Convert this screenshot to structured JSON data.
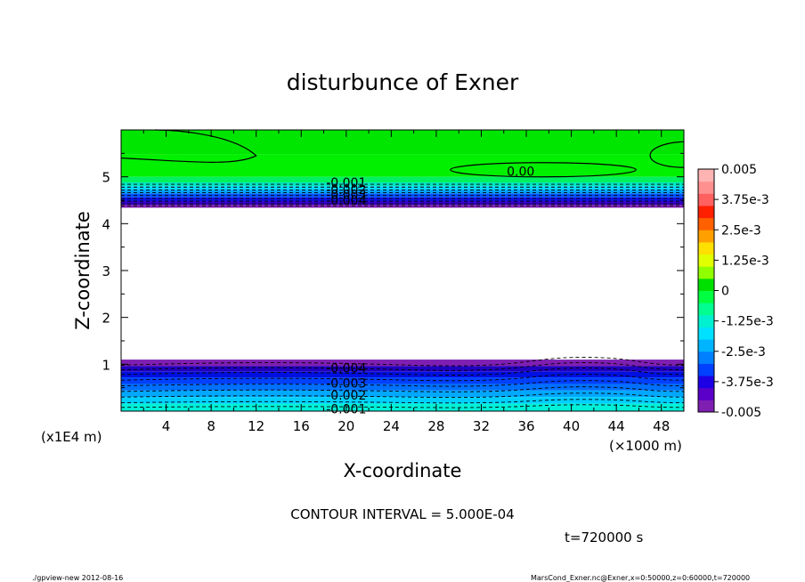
{
  "chart_data": {
    "type": "heatmap",
    "title": "disturbunce of Exner",
    "xlabel": "X-coordinate",
    "ylabel": "Z-coordinate",
    "x_unit": "(×1000 m)",
    "y_unit": "(x1E4 m)",
    "xlim": [
      0,
      50
    ],
    "ylim": [
      0,
      6
    ],
    "x_ticks": [
      "4",
      "8",
      "12",
      "16",
      "20",
      "24",
      "28",
      "32",
      "36",
      "40",
      "44",
      "48"
    ],
    "y_ticks": [
      "1",
      "2",
      "3",
      "4",
      "5"
    ],
    "contour_labels": [
      {
        "text": "0.00",
        "x": 35.5,
        "y": 5.12
      },
      {
        "text": "-0.001",
        "x": 20,
        "y": 4.88
      },
      {
        "text": "-0.002",
        "x": 20,
        "y": 4.73
      },
      {
        "text": "-0.003",
        "x": 20,
        "y": 4.62
      },
      {
        "text": "-0.004",
        "x": 20,
        "y": 4.5
      },
      {
        "text": "-0.004",
        "x": 20,
        "y": 0.92
      },
      {
        "text": "-0.003",
        "x": 20,
        "y": 0.6
      },
      {
        "text": "-0.002",
        "x": 20,
        "y": 0.34
      },
      {
        "text": "-0.001",
        "x": 20,
        "y": 0.05
      }
    ],
    "colorbar": {
      "min": -0.005,
      "max": 0.005,
      "labels": [
        "0.005",
        "3.75e-3",
        "2.5e-3",
        "1.25e-3",
        "0",
        "-1.25e-3",
        "-2.5e-3",
        "-3.75e-3",
        "-0.005"
      ],
      "colors": [
        "#7f1fb2",
        "#5a00c8",
        "#1e00e6",
        "#0040ff",
        "#0080ff",
        "#00b4ff",
        "#00e0ff",
        "#00f0d0",
        "#00ff90",
        "#00ff40",
        "#00e000",
        "#90ff00",
        "#e0ff00",
        "#ffe000",
        "#ffa000",
        "#ff6000",
        "#ff2000",
        "#ff6060",
        "#ff9090",
        "#ffb4b4"
      ]
    }
  },
  "annotations": {
    "contour_interval": "CONTOUR INTERVAL = 5.000E-04",
    "time": "t=720000 s",
    "footer_left": "./gpview-new  2012-08-16",
    "footer_right": "MarsCond_Exner.nc@Exner,x=0:50000,z=0:60000,t=720000"
  }
}
